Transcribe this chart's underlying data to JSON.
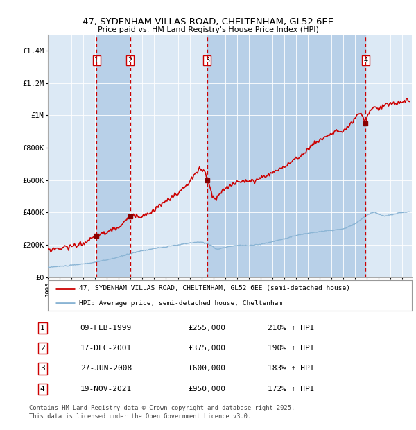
{
  "title_line1": "47, SYDENHAM VILLAS ROAD, CHELTENHAM, GL52 6EE",
  "title_line2": "Price paid vs. HM Land Registry's House Price Index (HPI)",
  "plot_bg_color": "#dce9f5",
  "transactions": [
    {
      "label": "1",
      "date": "09-FEB-1999",
      "year": 1999.11,
      "price": 255000,
      "pct": "210% ↑ HPI"
    },
    {
      "label": "2",
      "date": "17-DEC-2001",
      "year": 2001.96,
      "price": 375000,
      "pct": "190% ↑ HPI"
    },
    {
      "label": "3",
      "date": "27-JUN-2008",
      "year": 2008.49,
      "price": 600000,
      "pct": "183% ↑ HPI"
    },
    {
      "label": "4",
      "date": "19-NOV-2021",
      "year": 2021.88,
      "price": 950000,
      "pct": "172% ↑ HPI"
    }
  ],
  "hpi_line_color": "#8ab4d4",
  "price_line_color": "#cc0000",
  "marker_color": "#880000",
  "transaction_box_color": "#cc0000",
  "dashed_line_color": "#cc0000",
  "shaded_region_color": "#b8d0e8",
  "footer_text1": "Contains HM Land Registry data © Crown copyright and database right 2025.",
  "footer_text2": "This data is licensed under the Open Government Licence v3.0.",
  "ylim": [
    0,
    1500000
  ],
  "yticks": [
    0,
    200000,
    400000,
    600000,
    800000,
    1000000,
    1200000,
    1400000
  ],
  "ytick_labels": [
    "£0",
    "£200K",
    "£400K",
    "£600K",
    "£800K",
    "£1M",
    "£1.2M",
    "£1.4M"
  ],
  "xmin": 1995.0,
  "xmax": 2025.8,
  "xtick_years": [
    1995,
    1996,
    1997,
    1998,
    1999,
    2000,
    2001,
    2002,
    2003,
    2004,
    2005,
    2006,
    2007,
    2008,
    2009,
    2010,
    2011,
    2012,
    2013,
    2014,
    2015,
    2016,
    2017,
    2018,
    2019,
    2020,
    2021,
    2022,
    2023,
    2024,
    2025
  ],
  "legend_entry1": "47, SYDENHAM VILLAS ROAD, CHELTENHAM, GL52 6EE (semi-detached house)",
  "legend_entry2": "HPI: Average price, semi-detached house, Cheltenham",
  "table_rows": [
    [
      "1",
      "09-FEB-1999",
      "£255,000",
      "210% ↑ HPI"
    ],
    [
      "2",
      "17-DEC-2001",
      "£375,000",
      "190% ↑ HPI"
    ],
    [
      "3",
      "27-JUN-2008",
      "£600,000",
      "183% ↑ HPI"
    ],
    [
      "4",
      "19-NOV-2021",
      "£950,000",
      "172% ↑ HPI"
    ]
  ]
}
